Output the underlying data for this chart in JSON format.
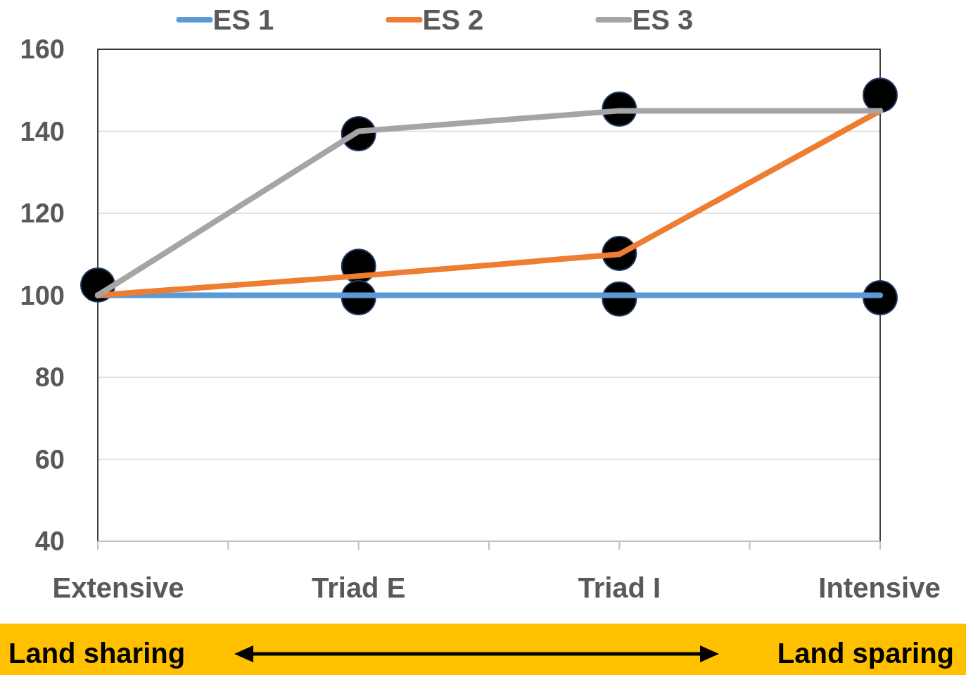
{
  "chart_data": {
    "type": "line",
    "categories": [
      "Extensive",
      "Triad E",
      "Triad I",
      "Intensive"
    ],
    "series": [
      {
        "name": "ES 1",
        "color": "#5b9bd5",
        "values": [
          100,
          100,
          100,
          100
        ]
      },
      {
        "name": "ES 2",
        "color": "#ed7d31",
        "values": [
          100,
          104.7,
          110,
          145
        ]
      },
      {
        "name": "ES 3",
        "color": "#a5a5a5",
        "values": [
          100,
          140,
          145,
          145
        ]
      },
      {
        "type": "scatter",
        "marker": "circle",
        "color": "#000000",
        "x": [
          "Extensive",
          "Triad E",
          "Triad E",
          "Triad E",
          "Triad I",
          "Triad I",
          "Triad I",
          "Intensive",
          "Intensive"
        ],
        "values": [
          102.5,
          139.4,
          107.1,
          99.4,
          145.4,
          110.2,
          99.1,
          148.8,
          99.4
        ]
      }
    ],
    "ylim": [
      40,
      160
    ],
    "yticks": [
      40,
      60,
      80,
      100,
      120,
      140,
      160
    ],
    "grid": "y",
    "legend": "top",
    "line_style": "solid",
    "annotations": [
      "Land sharing",
      "Land sparing"
    ]
  }
}
